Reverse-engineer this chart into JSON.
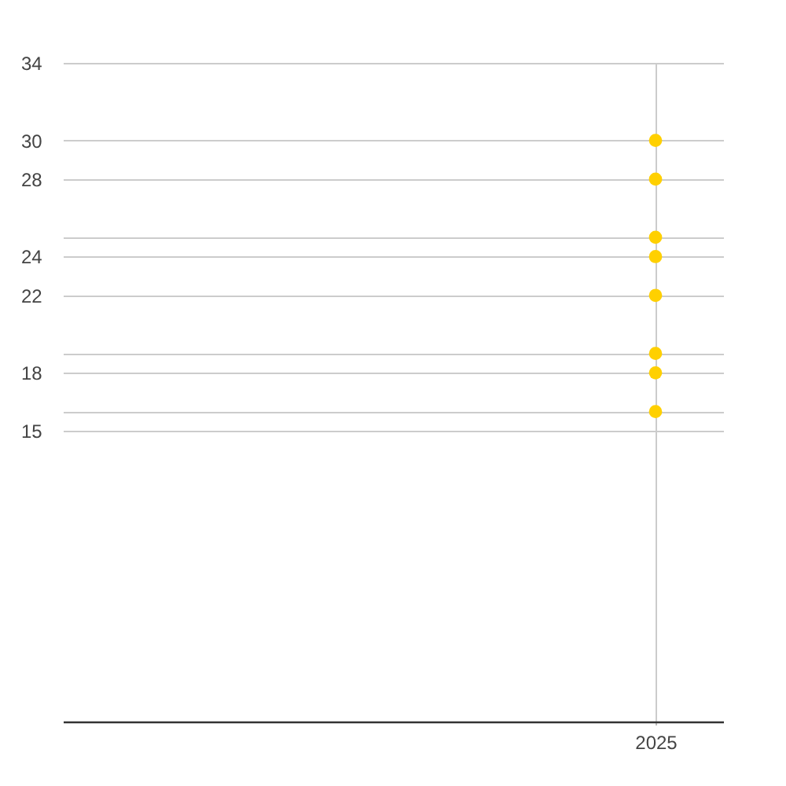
{
  "chart_data": {
    "type": "scatter",
    "categories": [
      "2025"
    ],
    "series": [
      {
        "color": "#ffd000",
        "values": [
          30
        ]
      },
      {
        "color": "#ffd000",
        "values": [
          28
        ]
      },
      {
        "color": "#ffd000",
        "values": [
          25
        ]
      },
      {
        "color": "#ffd000",
        "values": [
          24
        ]
      },
      {
        "color": "#ffd000",
        "values": [
          22
        ]
      },
      {
        "color": "#ffd000",
        "values": [
          19
        ]
      },
      {
        "color": "#ffd000",
        "values": [
          18
        ]
      },
      {
        "color": "#ffd000",
        "values": [
          16
        ]
      }
    ],
    "ylim": [
      0,
      34
    ],
    "yticks": [
      34,
      30,
      28,
      {
        "value": 25,
        "label": null
      },
      24,
      22,
      {
        "value": 19,
        "label": null
      },
      18,
      {
        "value": 16,
        "label": null
      },
      15
    ],
    "grid": true,
    "marker": "circle"
  }
}
